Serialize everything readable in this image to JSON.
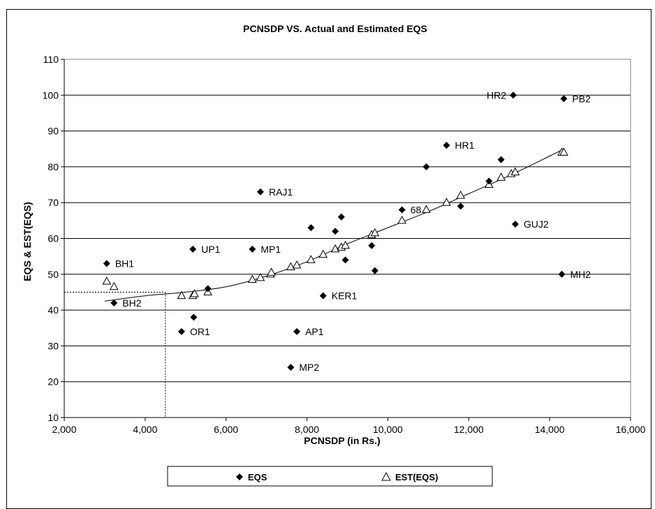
{
  "chart_data": {
    "type": "scatter",
    "title": "PCNSDP VS. Actual and Estimated EQS",
    "xlabel": "PCNSDP (in Rs.)",
    "ylabel": "EQS & EST(EQS)",
    "xlim": [
      2000,
      16000
    ],
    "ylim": [
      10,
      110
    ],
    "x_ticks": [
      2000,
      4000,
      6000,
      8000,
      10000,
      12000,
      14000,
      16000
    ],
    "x_tick_labels": [
      "2,000",
      "4,000",
      "6,000",
      "8,000",
      "10,000",
      "12,000",
      "14,000",
      "16,000"
    ],
    "y_ticks": [
      10,
      20,
      30,
      40,
      50,
      60,
      70,
      80,
      90,
      100,
      110
    ],
    "y_tick_labels": [
      "10",
      "20",
      "30",
      "40",
      "50",
      "60",
      "70",
      "80",
      "90",
      "100",
      "110"
    ],
    "grid": "horizontal",
    "legend_position": "bottom",
    "reference_point": {
      "x": 4500,
      "y": 45
    },
    "series": [
      {
        "name": "EQS",
        "marker": "diamond",
        "points": [
          {
            "x": 3050,
            "y": 53,
            "label": "BH1"
          },
          {
            "x": 3230,
            "y": 42,
            "label": "BH2"
          },
          {
            "x": 4900,
            "y": 34,
            "label": "OR1"
          },
          {
            "x": 5180,
            "y": 57,
            "label": "UP1"
          },
          {
            "x": 5200,
            "y": 38
          },
          {
            "x": 5550,
            "y": 46
          },
          {
            "x": 6650,
            "y": 57,
            "label": "MP1"
          },
          {
            "x": 6850,
            "y": 73,
            "label": "RAJ1"
          },
          {
            "x": 7600,
            "y": 24,
            "label": "MP2"
          },
          {
            "x": 7750,
            "y": 34,
            "label": "AP1"
          },
          {
            "x": 8100,
            "y": 63
          },
          {
            "x": 8400,
            "y": 44,
            "label": "KER1"
          },
          {
            "x": 8700,
            "y": 62
          },
          {
            "x": 8850,
            "y": 66
          },
          {
            "x": 8950,
            "y": 54
          },
          {
            "x": 9600,
            "y": 58
          },
          {
            "x": 9680,
            "y": 51
          },
          {
            "x": 10350,
            "y": 68,
            "label": "68"
          },
          {
            "x": 10950,
            "y": 80
          },
          {
            "x": 11450,
            "y": 86,
            "label": "HR1"
          },
          {
            "x": 11800,
            "y": 69
          },
          {
            "x": 12500,
            "y": 76
          },
          {
            "x": 12800,
            "y": 82
          },
          {
            "x": 13100,
            "y": 100,
            "label": "HR2"
          },
          {
            "x": 13150,
            "y": 64,
            "label": "GUJ2"
          },
          {
            "x": 14300,
            "y": 50,
            "label": "MH2"
          },
          {
            "x": 14350,
            "y": 99,
            "label": "PB2"
          }
        ]
      },
      {
        "name": "EST(EQS)",
        "marker": "triangle-open",
        "points": [
          {
            "x": 3050,
            "y": 48
          },
          {
            "x": 3230,
            "y": 46.5
          },
          {
            "x": 4900,
            "y": 44
          },
          {
            "x": 5180,
            "y": 44
          },
          {
            "x": 5220,
            "y": 44.5
          },
          {
            "x": 5550,
            "y": 45
          },
          {
            "x": 6650,
            "y": 48.5
          },
          {
            "x": 6850,
            "y": 49
          },
          {
            "x": 7100,
            "y": 50
          },
          {
            "x": 7120,
            "y": 50.5
          },
          {
            "x": 7600,
            "y": 52
          },
          {
            "x": 7750,
            "y": 52.5
          },
          {
            "x": 8100,
            "y": 54
          },
          {
            "x": 8400,
            "y": 55.5
          },
          {
            "x": 8700,
            "y": 57
          },
          {
            "x": 8850,
            "y": 57.5
          },
          {
            "x": 8950,
            "y": 58
          },
          {
            "x": 9600,
            "y": 61
          },
          {
            "x": 9680,
            "y": 61.5
          },
          {
            "x": 10350,
            "y": 65
          },
          {
            "x": 10950,
            "y": 68
          },
          {
            "x": 11450,
            "y": 70
          },
          {
            "x": 11800,
            "y": 72
          },
          {
            "x": 12500,
            "y": 75
          },
          {
            "x": 12800,
            "y": 77
          },
          {
            "x": 13050,
            "y": 78
          },
          {
            "x": 13150,
            "y": 78.5
          },
          {
            "x": 14300,
            "y": 84
          },
          {
            "x": 14350,
            "y": 84
          }
        ]
      }
    ],
    "trend_curve": [
      {
        "x": 3000,
        "y": 42.5
      },
      {
        "x": 4000,
        "y": 44
      },
      {
        "x": 5000,
        "y": 45
      },
      {
        "x": 6000,
        "y": 46.5
      },
      {
        "x": 7000,
        "y": 49.5
      },
      {
        "x": 8000,
        "y": 53.5
      },
      {
        "x": 9000,
        "y": 58.5
      },
      {
        "x": 10000,
        "y": 63
      },
      {
        "x": 11000,
        "y": 67.5
      },
      {
        "x": 12000,
        "y": 72.5
      },
      {
        "x": 13000,
        "y": 77.5
      },
      {
        "x": 14000,
        "y": 83
      },
      {
        "x": 14350,
        "y": 85
      }
    ]
  }
}
